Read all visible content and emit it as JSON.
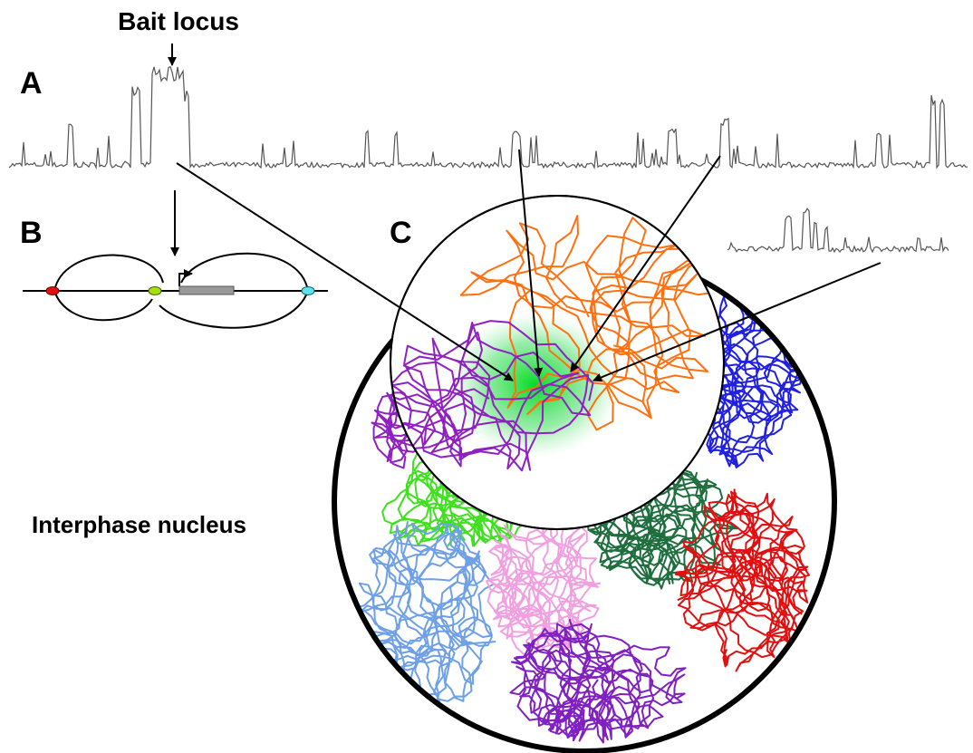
{
  "labels": {
    "bait_locus": "Bait locus",
    "panel_a": "A",
    "panel_b": "B",
    "panel_c": "C",
    "nucleus": "Interphase nucleus"
  }
}
